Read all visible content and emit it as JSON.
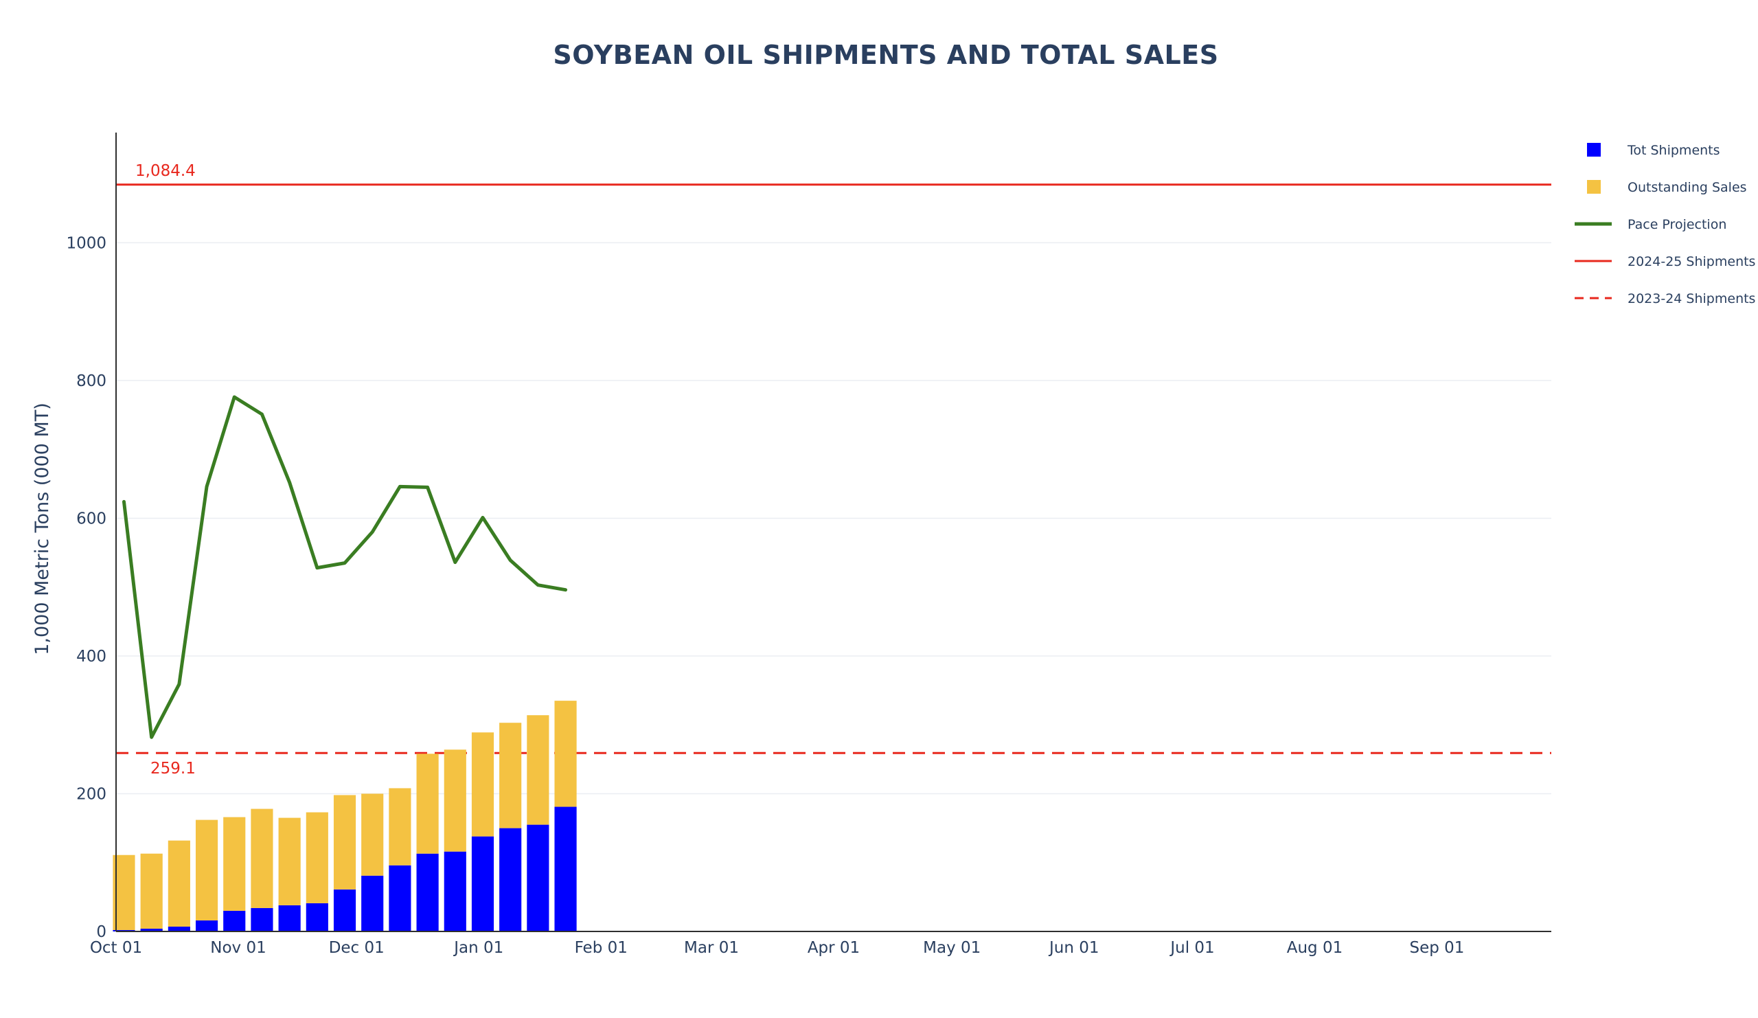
{
  "chart_data": {
    "type": "bar",
    "title": "SOYBEAN OIL SHIPMENTS AND TOTAL SALES",
    "xlabel": "",
    "ylabel": "1,000 Metric Tons (000 MT)",
    "ylim": [
      0,
      1160
    ],
    "xlim": [
      "2024-10-01",
      "2025-09-30"
    ],
    "yticks": [
      0,
      200,
      400,
      600,
      800,
      1000
    ],
    "xticks": [
      {
        "date": "2024-10-01",
        "label": "Oct 01"
      },
      {
        "date": "2024-11-01",
        "label": "Nov 01"
      },
      {
        "date": "2024-12-01",
        "label": "Dec 01"
      },
      {
        "date": "2025-01-01",
        "label": "Jan 01"
      },
      {
        "date": "2025-02-01",
        "label": "Feb 01"
      },
      {
        "date": "2025-03-01",
        "label": "Mar 01"
      },
      {
        "date": "2025-04-01",
        "label": "Apr 01"
      },
      {
        "date": "2025-05-01",
        "label": "May 01"
      },
      {
        "date": "2025-06-01",
        "label": "Jun 01"
      },
      {
        "date": "2025-07-01",
        "label": "Jul 01"
      },
      {
        "date": "2025-08-01",
        "label": "Aug 01"
      },
      {
        "date": "2025-09-01",
        "label": "Sep 01"
      }
    ],
    "x": [
      "2024-10-03",
      "2024-10-10",
      "2024-10-17",
      "2024-10-24",
      "2024-10-31",
      "2024-11-07",
      "2024-11-14",
      "2024-11-21",
      "2024-11-28",
      "2024-12-05",
      "2024-12-12",
      "2024-12-19",
      "2024-12-26",
      "2025-01-02",
      "2025-01-09",
      "2025-01-16",
      "2025-01-23"
    ],
    "barmode": "stack",
    "series": [
      {
        "name": "Tot Shipments",
        "kind": "bar",
        "color": "#0000ff",
        "values": [
          2,
          4,
          7,
          16,
          30,
          34,
          38,
          41,
          61,
          81,
          96,
          113,
          116,
          138,
          150,
          155,
          181
        ]
      },
      {
        "name": "Outstanding Sales",
        "kind": "bar",
        "color": "#f4c242",
        "values": [
          109,
          109,
          125,
          146,
          136,
          144,
          127,
          132,
          137,
          119,
          112,
          145,
          148,
          151,
          153,
          159,
          154
        ]
      },
      {
        "name": "Pace Projection",
        "kind": "line",
        "color": "#3a7d22",
        "values": [
          624,
          282,
          359,
          646,
          776,
          751,
          652,
          528,
          535,
          580,
          646,
          645,
          536,
          601,
          539,
          503,
          496
        ]
      }
    ],
    "reference_lines": [
      {
        "name": "2024-25 Shipments",
        "value": 1084.4,
        "label": "1,084.4",
        "color": "#e8281e",
        "style": "solid"
      },
      {
        "name": "2023-24 Shipments",
        "value": 259.1,
        "label": "259.1",
        "color": "#e8281e",
        "style": "dashed"
      }
    ],
    "grid": true,
    "legend_position": "right"
  }
}
